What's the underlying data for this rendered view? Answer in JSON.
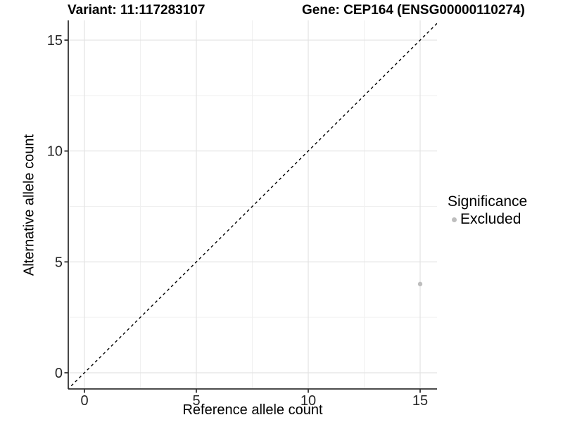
{
  "chart_data": {
    "type": "scatter",
    "title_left": "Variant: 11:117283107",
    "title_right": "Gene: CEP164 (ENSG00000110274)",
    "xlabel": "Reference allele count",
    "ylabel": "Alternative allele count",
    "xlim": [
      -0.75,
      15.75
    ],
    "ylim": [
      -0.75,
      15.75
    ],
    "x_ticks": [
      0,
      5,
      10,
      15
    ],
    "y_ticks": [
      0,
      5,
      10,
      15
    ],
    "x_minor_ticks": [
      2.5,
      7.5,
      12.5
    ],
    "y_minor_ticks": [
      2.5,
      7.5,
      12.5
    ],
    "grid": "major+minor",
    "reference_line": {
      "type": "identity",
      "slope": 1,
      "intercept": 0,
      "style": "dashed",
      "color": "#000000"
    },
    "series": [
      {
        "name": "Excluded",
        "marker": "circle",
        "color": "#bebebe",
        "points": [
          [
            15,
            4
          ]
        ]
      }
    ],
    "legend": {
      "title": "Significance",
      "position": "right",
      "items": [
        {
          "label": "Excluded",
          "color": "#bebebe",
          "marker": "circle"
        }
      ]
    },
    "theme": {
      "panel_background": "#ffffff",
      "grid_major_color": "#e3e3e3",
      "grid_minor_color": "#f0f0f0",
      "axis_line_color": "#333333",
      "tick_label_color": "#262626"
    }
  }
}
